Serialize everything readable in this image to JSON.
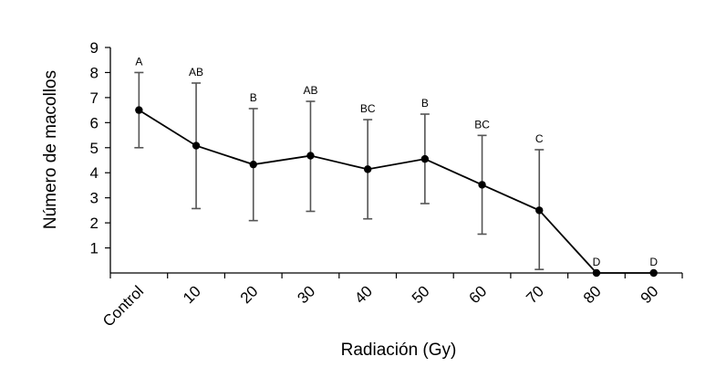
{
  "chart_data": {
    "type": "line",
    "categories": [
      "Control",
      "10",
      "20",
      "30",
      "40",
      "50",
      "60",
      "70",
      "80",
      "90"
    ],
    "series": [
      {
        "values": [
          6.5,
          5.08,
          4.33,
          4.68,
          4.14,
          4.55,
          3.52,
          2.5,
          0.0,
          0.0
        ],
        "error_low": [
          5.0,
          2.57,
          2.09,
          2.46,
          2.16,
          2.77,
          1.55,
          0.14,
          0.0,
          0.0
        ],
        "error_high": [
          8.0,
          7.58,
          6.56,
          6.85,
          6.12,
          6.34,
          5.49,
          4.92,
          0.0,
          0.0
        ],
        "letters": [
          "A",
          "AB",
          "B",
          "AB",
          "BC",
          "B",
          "BC",
          "C",
          "D",
          "D"
        ],
        "color": "#000000"
      }
    ],
    "title": "",
    "xlabel": "Radiación (Gy)",
    "ylabel": "Número de macollos",
    "ylim": [
      0,
      9
    ],
    "yticks": [
      1,
      2,
      3,
      4,
      5,
      6,
      7,
      8,
      9
    ],
    "grid": false,
    "legend": "none",
    "errorbar_color": "#555555"
  }
}
